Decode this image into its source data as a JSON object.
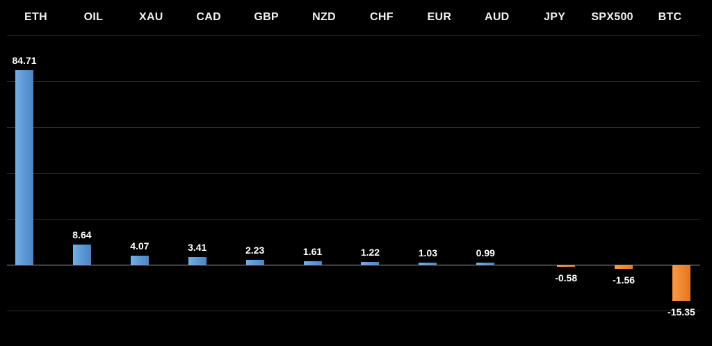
{
  "chart_data": {
    "type": "bar",
    "title": "",
    "xlabel": "",
    "ylabel": "",
    "categories": [
      "ETH",
      "OIL",
      "XAU",
      "CAD",
      "GBP",
      "NZD",
      "CHF",
      "EUR",
      "AUD",
      "JPY",
      "SPX500",
      "BTC"
    ],
    "values": [
      84.71,
      8.64,
      4.07,
      3.41,
      2.23,
      1.61,
      1.22,
      1.03,
      0.99,
      -0.58,
      -1.56,
      -15.35
    ],
    "value_labels": [
      "84.71",
      "8.64",
      "4.07",
      "3.41",
      "2.23",
      "1.61",
      "1.22",
      "1.03",
      "0.99",
      "-0.58",
      "-1.56",
      "-15.35"
    ],
    "ylim": [
      -35,
      115
    ],
    "gridline_values": [
      100,
      80,
      60,
      40,
      20,
      0,
      -20
    ],
    "grid": "horizontal-only",
    "legend": "none",
    "colors": {
      "background": "#000000",
      "positive_bar_gradient": [
        "#79aee0",
        "#5d9ad6",
        "#4a86c4"
      ],
      "negative_bar_gradient": [
        "#f79a4e",
        "#f08b33",
        "#e5761e"
      ],
      "gridline": "#2b2b2b",
      "baseline": "#a6a6a6",
      "category_text": "#f2f2f2",
      "value_text": "#ffffff"
    }
  }
}
